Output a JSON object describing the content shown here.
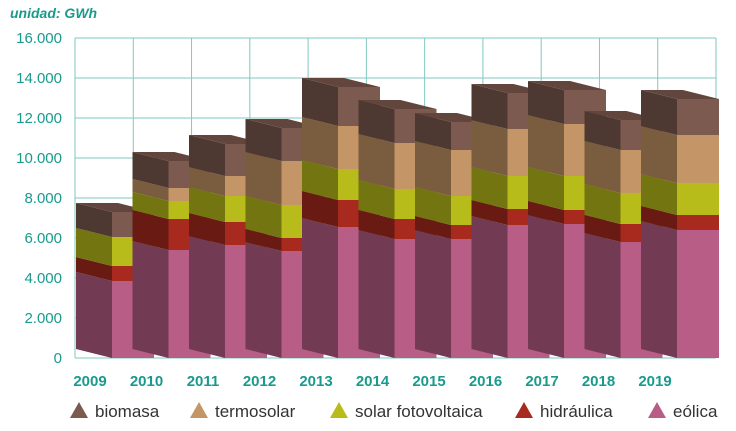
{
  "chart_data": {
    "type": "bar",
    "stacked": true,
    "style": "3d",
    "unit_label": "unidad: GWh",
    "categories": [
      "2009",
      "2010",
      "2011",
      "2012",
      "2013",
      "2014",
      "2015",
      "2016",
      "2017",
      "2018",
      "2019"
    ],
    "ylim": [
      0,
      16000
    ],
    "yticks": [
      0,
      2000,
      4000,
      6000,
      8000,
      10000,
      12000,
      14000,
      16000
    ],
    "ytick_labels": [
      "0",
      "2.000",
      "4.000",
      "6.000",
      "8.000",
      "10.000",
      "12.000",
      "14.000",
      "16.000"
    ],
    "grid": true,
    "legend_position": "bottom",
    "series": [
      {
        "name": "eólica",
        "color": "#b85d86",
        "values": [
          3850,
          5400,
          5650,
          5350,
          6550,
          5950,
          5950,
          6650,
          6700,
          5800,
          6400
        ]
      },
      {
        "name": "hidráulica",
        "color": "#a82a1e",
        "values": [
          750,
          1550,
          1150,
          650,
          1350,
          1000,
          700,
          800,
          700,
          900,
          750
        ]
      },
      {
        "name": "solar fotovoltaica",
        "color": "#b8bc1a",
        "values": [
          1450,
          900,
          1300,
          1650,
          1550,
          1500,
          1450,
          1650,
          1700,
          1550,
          1600
        ]
      },
      {
        "name": "termosolar",
        "color": "#c49566",
        "values": [
          0,
          650,
          1000,
          2200,
          2150,
          2300,
          2300,
          2350,
          2600,
          2150,
          2400
        ]
      },
      {
        "name": "biomasa",
        "color": "#7d5a50",
        "values": [
          1250,
          1350,
          1600,
          1650,
          1950,
          1700,
          1400,
          1800,
          1700,
          1500,
          1800
        ]
      }
    ]
  },
  "legend": {
    "items": [
      {
        "label": "biomasa",
        "color": "#7d5a50"
      },
      {
        "label": "termosolar",
        "color": "#c49566"
      },
      {
        "label": "solar fotovoltaica",
        "color": "#b8bc1a"
      },
      {
        "label": "hidráulica",
        "color": "#a82a1e"
      },
      {
        "label": "eólica",
        "color": "#b85d86"
      }
    ]
  }
}
